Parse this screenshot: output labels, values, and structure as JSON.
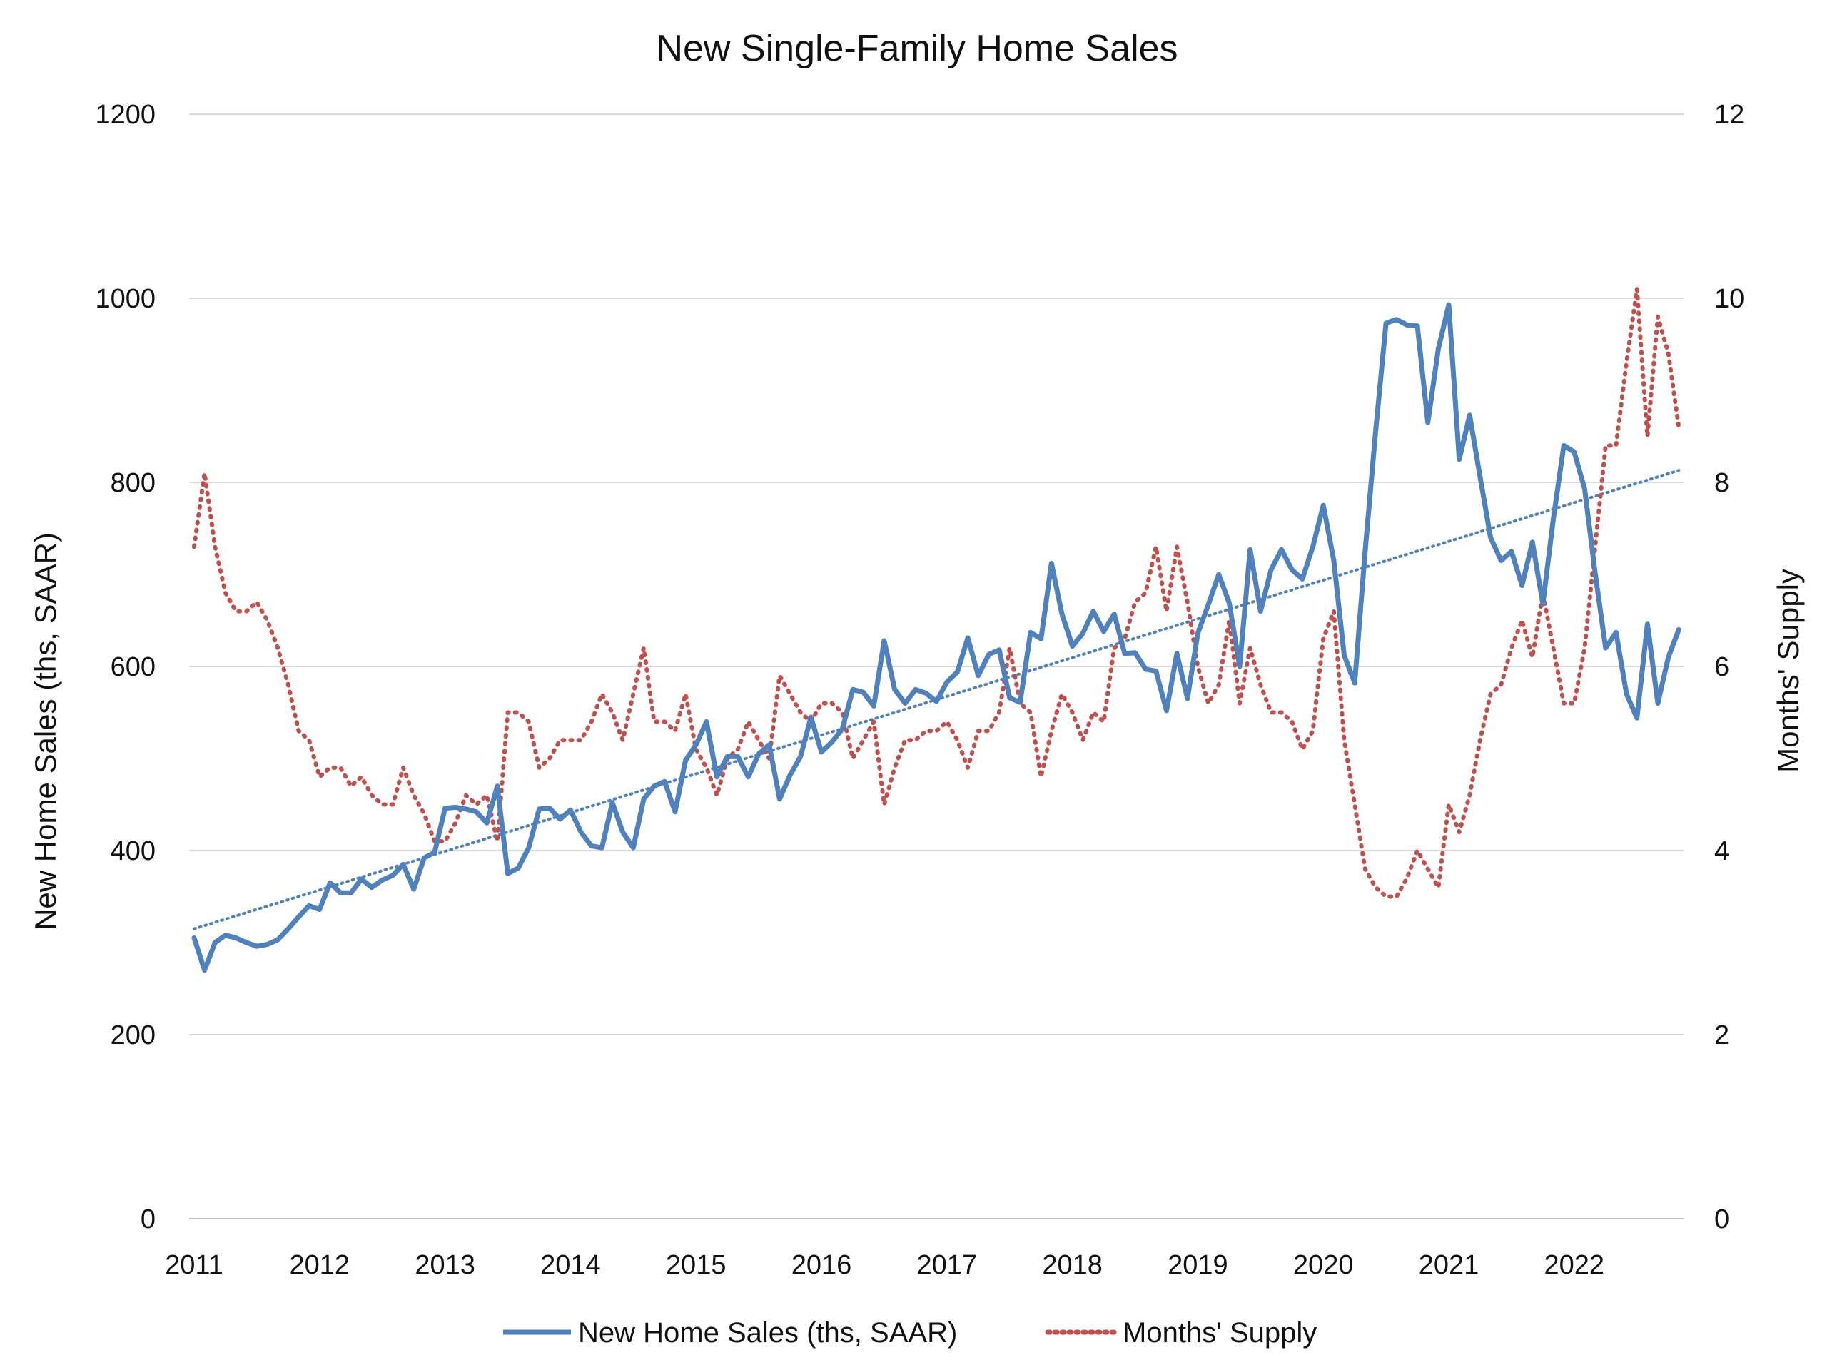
{
  "chart_data": {
    "type": "line",
    "title": "New Single-Family Home Sales",
    "ylabel": "New Home Sales (ths, SAAR)",
    "y2label": "Months' Supply",
    "ylim": [
      0,
      1200
    ],
    "y2lim": [
      0,
      12
    ],
    "yticks": [
      0,
      200,
      400,
      600,
      800,
      1000,
      1200
    ],
    "y2ticks": [
      0,
      2,
      4,
      6,
      8,
      10,
      12
    ],
    "xticks": [
      "2011",
      "2012",
      "2013",
      "2014",
      "2015",
      "2016",
      "2017",
      "2018",
      "2019",
      "2020",
      "2021",
      "2022"
    ],
    "x_start": "2011-01",
    "grid": true,
    "legend_position": "bottom",
    "colors": {
      "sales": "#4f81bd",
      "supply": "#c0504d",
      "trend": "#4f81bd"
    },
    "series": [
      {
        "name": "New Home Sales (ths, SAAR)",
        "axis": "left",
        "style": "solid",
        "values": [
          305,
          270,
          300,
          308,
          305,
          300,
          296,
          298,
          303,
          315,
          328,
          340,
          336,
          365,
          354,
          354,
          369,
          360,
          368,
          373,
          385,
          358,
          392,
          398,
          446,
          447,
          445,
          442,
          430,
          470,
          375,
          381,
          403,
          445,
          446,
          434,
          444,
          420,
          405,
          403,
          452,
          420,
          403,
          456,
          470,
          475,
          442,
          498,
          515,
          540,
          480,
          502,
          502,
          480,
          505,
          515,
          456,
          482,
          502,
          545,
          507,
          518,
          532,
          575,
          572,
          557,
          628,
          575,
          560,
          575,
          571,
          562,
          583,
          594,
          631,
          590,
          613,
          618,
          566,
          561,
          637,
          630,
          712,
          657,
          622,
          636,
          660,
          638,
          657,
          614,
          615,
          597,
          595,
          552,
          614,
          565,
          636,
          667,
          700,
          669,
          600,
          727,
          660,
          705,
          727,
          705,
          695,
          730,
          775,
          715,
          612,
          582,
          725,
          855,
          973,
          977,
          971,
          970,
          865,
          945,
          993,
          825,
          873,
          806,
          740,
          715,
          725,
          688,
          735,
          668,
          760,
          840,
          833,
          793,
          702,
          620,
          637,
          570,
          544,
          646,
          560,
          610,
          640
        ]
      },
      {
        "name": "Months' Supply",
        "axis": "right",
        "style": "dotted",
        "values": [
          7.3,
          8.1,
          7.3,
          6.8,
          6.6,
          6.6,
          6.7,
          6.5,
          6.2,
          5.8,
          5.3,
          5.2,
          4.8,
          4.9,
          4.9,
          4.7,
          4.8,
          4.6,
          4.5,
          4.5,
          4.9,
          4.6,
          4.4,
          4.1,
          4.1,
          4.3,
          4.6,
          4.5,
          4.6,
          4.1,
          5.5,
          5.5,
          5.4,
          4.9,
          5.0,
          5.2,
          5.2,
          5.2,
          5.4,
          5.7,
          5.5,
          5.2,
          5.7,
          6.2,
          5.4,
          5.4,
          5.3,
          5.7,
          5.1,
          4.9,
          4.6,
          5.0,
          5.1,
          5.4,
          5.2,
          5.0,
          5.9,
          5.7,
          5.5,
          5.4,
          5.6,
          5.6,
          5.5,
          5.0,
          5.2,
          5.4,
          4.5,
          4.9,
          5.2,
          5.2,
          5.3,
          5.3,
          5.4,
          5.2,
          4.9,
          5.3,
          5.3,
          5.5,
          6.2,
          5.6,
          5.5,
          4.8,
          5.3,
          5.7,
          5.5,
          5.2,
          5.5,
          5.4,
          6.2,
          6.3,
          6.7,
          6.8,
          7.3,
          6.6,
          7.3,
          6.7,
          6.0,
          5.6,
          5.8,
          6.5,
          5.6,
          6.2,
          5.8,
          5.5,
          5.5,
          5.4,
          5.1,
          5.3,
          6.3,
          6.6,
          5.2,
          4.5,
          3.8,
          3.6,
          3.5,
          3.5,
          3.7,
          4.0,
          3.8,
          3.6,
          4.5,
          4.2,
          4.6,
          5.2,
          5.7,
          5.8,
          6.2,
          6.5,
          6.1,
          6.8,
          6.2,
          5.6,
          5.6,
          6.2,
          7.3,
          8.4,
          8.4,
          9.3,
          10.1,
          8.5,
          9.8,
          9.4,
          8.6
        ]
      },
      {
        "name": "Linear trend",
        "axis": "left",
        "style": "dotted-thin",
        "values": [
          315,
          813
        ]
      }
    ]
  }
}
